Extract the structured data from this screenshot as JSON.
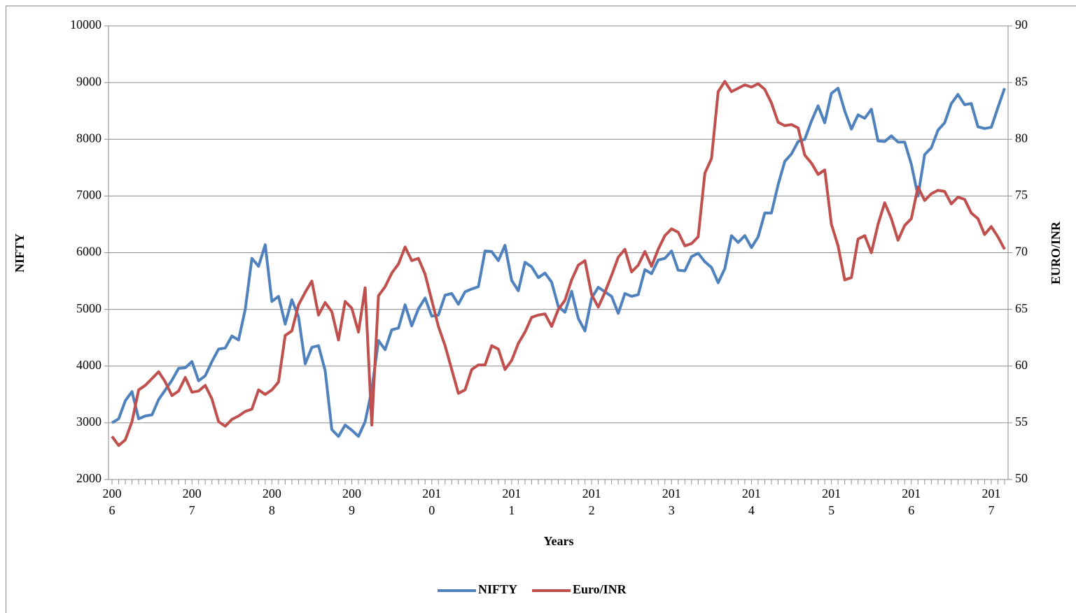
{
  "chart_data": {
    "type": "line",
    "x_label": "Years",
    "y_label": "NIFTY",
    "y2_label": "EURO/INR",
    "categories": [
      "2006",
      null,
      null,
      null,
      null,
      null,
      null,
      null,
      null,
      null,
      null,
      null,
      "2007",
      null,
      null,
      null,
      null,
      null,
      null,
      null,
      null,
      null,
      null,
      null,
      "2008",
      null,
      null,
      null,
      null,
      null,
      null,
      null,
      null,
      null,
      null,
      null,
      "2009",
      null,
      null,
      null,
      null,
      null,
      null,
      null,
      null,
      null,
      null,
      null,
      "2010",
      null,
      null,
      null,
      null,
      null,
      null,
      null,
      null,
      null,
      null,
      null,
      "2011",
      null,
      null,
      null,
      null,
      null,
      null,
      null,
      null,
      null,
      null,
      null,
      "2012",
      null,
      null,
      null,
      null,
      null,
      null,
      null,
      null,
      null,
      null,
      null,
      "2013",
      null,
      null,
      null,
      null,
      null,
      null,
      null,
      null,
      null,
      null,
      null,
      "2014",
      null,
      null,
      null,
      null,
      null,
      null,
      null,
      null,
      null,
      null,
      null,
      "2015",
      null,
      null,
      null,
      null,
      null,
      null,
      null,
      null,
      null,
      null,
      null,
      "2016",
      null,
      null,
      null,
      null,
      null,
      null,
      null,
      null,
      null,
      null,
      null,
      "2017",
      null,
      null
    ],
    "series": [
      {
        "name": "NIFTY",
        "color": "#4f81bd",
        "values": [
          3000,
          3070,
          3390,
          3550,
          3070,
          3120,
          3140,
          3410,
          3580,
          3750,
          3960,
          3970,
          4080,
          3740,
          3830,
          4080,
          4300,
          4320,
          4530,
          4460,
          5000,
          5900,
          5760,
          6140,
          5140,
          5230,
          4740,
          5170,
          4870,
          4040,
          4330,
          4360,
          3920,
          2880,
          2760,
          2960,
          2870,
          2760,
          3020,
          3580,
          4450,
          4290,
          4640,
          4670,
          5080,
          4710,
          5010,
          5200,
          4880,
          4900,
          5250,
          5280,
          5090,
          5310,
          5360,
          5400,
          6030,
          6020,
          5860,
          6130,
          5510,
          5330,
          5830,
          5750,
          5560,
          5640,
          5480,
          5050,
          4950,
          5320,
          4840,
          4620,
          5200,
          5390,
          5310,
          5230,
          4930,
          5280,
          5230,
          5260,
          5700,
          5630,
          5870,
          5900,
          6030,
          5690,
          5680,
          5930,
          5990,
          5840,
          5740,
          5470,
          5720,
          6300,
          6180,
          6300,
          6090,
          6280,
          6700,
          6700,
          7200,
          7610,
          7740,
          7960,
          8000,
          8320,
          8590,
          8290,
          8810,
          8900,
          8500,
          8180,
          8430,
          8370,
          8530,
          7970,
          7960,
          8060,
          7950,
          7950,
          7560,
          7000,
          7730,
          7850,
          8160,
          8290,
          8630,
          8790,
          8610,
          8630,
          8220,
          8190,
          8210,
          8560,
          8900
        ]
      },
      {
        "name": "Euro/INR",
        "color": "#c0504d",
        "axis": "y2",
        "values": [
          53.8,
          53.0,
          53.5,
          55.1,
          57.9,
          58.3,
          58.9,
          59.5,
          58.6,
          57.4,
          57.8,
          59.0,
          57.7,
          57.8,
          58.3,
          57.1,
          55.1,
          54.7,
          55.3,
          55.6,
          56.0,
          56.2,
          57.9,
          57.5,
          57.9,
          58.6,
          62.7,
          63.1,
          65.4,
          66.5,
          67.5,
          64.5,
          65.6,
          64.8,
          62.3,
          65.7,
          65.1,
          63.0,
          66.9,
          54.8,
          66.2,
          67.0,
          68.2,
          69.0,
          70.5,
          69.3,
          69.5,
          68.1,
          65.8,
          63.5,
          61.8,
          59.7,
          57.6,
          57.9,
          59.7,
          60.1,
          60.1,
          61.8,
          61.5,
          59.7,
          60.5,
          62.0,
          63.0,
          64.3,
          64.5,
          64.6,
          63.5,
          65.0,
          65.8,
          67.6,
          68.9,
          69.3,
          66.3,
          65.2,
          66.5,
          68.0,
          69.6,
          70.3,
          68.3,
          68.9,
          70.1,
          68.8,
          70.3,
          71.5,
          72.1,
          71.8,
          70.6,
          70.8,
          71.4,
          77.0,
          78.3,
          84.2,
          85.1,
          84.2,
          84.5,
          84.8,
          84.6,
          84.9,
          84.4,
          83.2,
          81.5,
          81.2,
          81.3,
          81.0,
          78.6,
          77.9,
          76.9,
          77.3,
          72.5,
          70.6,
          67.6,
          67.8,
          71.2,
          71.5,
          70.0,
          72.5,
          74.4,
          73.0,
          71.1,
          72.4,
          73.0,
          75.8,
          74.6,
          75.2,
          75.5,
          75.4,
          74.3,
          74.9,
          74.7,
          73.5,
          73.0,
          71.6,
          72.3,
          71.4,
          70.3
        ]
      }
    ],
    "ylim": [
      2000,
      10000
    ],
    "yticks": [
      2000,
      3000,
      4000,
      5000,
      6000,
      7000,
      8000,
      9000,
      10000
    ],
    "y2lim": [
      50,
      90
    ],
    "y2ticks": [
      50,
      55,
      60,
      65,
      70,
      75,
      80,
      85,
      90
    ],
    "grid": true,
    "legend": "bottom"
  }
}
